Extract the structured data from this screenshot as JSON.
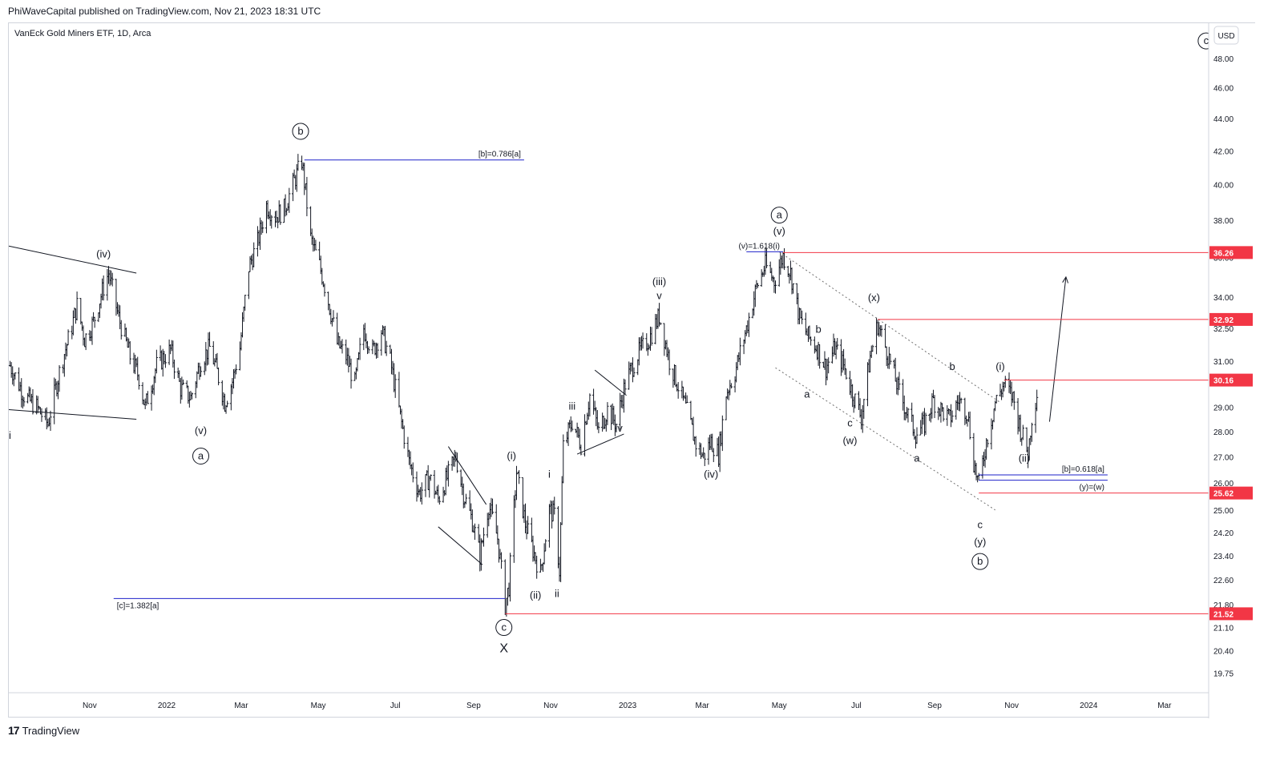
{
  "header": {
    "published": "PhiWaveCapital published on TradingView.com, Nov 21, 2023 18:31 UTC"
  },
  "footer": {
    "brand": "TradingView",
    "logo_icon": "tradingview-logo-icon"
  },
  "chart_data": {
    "type": "ohlc-bar",
    "title": "VanEck Gold Miners ETF, 1D, Arca",
    "currency": "USD",
    "log_scale": true,
    "ylim": [
      19.2,
      50.5
    ],
    "xlim": [
      "2021-08-29",
      "2024-04-05"
    ],
    "grid": false,
    "y_ticks": [
      "48.00",
      "46.00",
      "44.00",
      "42.00",
      "40.00",
      "38.00",
      "36.00",
      "34.00",
      "32.50",
      "31.00",
      "29.00",
      "28.00",
      "27.00",
      "26.00",
      "25.00",
      "24.20",
      "23.40",
      "22.60",
      "21.80",
      "21.10",
      "20.40",
      "19.75"
    ],
    "x_ticks": [
      {
        "label": "Nov",
        "date": "2021-11-01"
      },
      {
        "label": "2022",
        "date": "2022-01-01"
      },
      {
        "label": "Mar",
        "date": "2022-03-01"
      },
      {
        "label": "May",
        "date": "2022-05-01"
      },
      {
        "label": "Jul",
        "date": "2022-07-01"
      },
      {
        "label": "Sep",
        "date": "2022-09-01"
      },
      {
        "label": "Nov",
        "date": "2022-11-01"
      },
      {
        "label": "2023",
        "date": "2023-01-01"
      },
      {
        "label": "Mar",
        "date": "2023-03-01"
      },
      {
        "label": "May",
        "date": "2023-05-01"
      },
      {
        "label": "Jul",
        "date": "2023-07-01"
      },
      {
        "label": "Sep",
        "date": "2023-09-01"
      },
      {
        "label": "Nov",
        "date": "2023-11-01"
      },
      {
        "label": "2024",
        "date": "2024-01-01"
      },
      {
        "label": "Mar",
        "date": "2024-03-01"
      }
    ],
    "price_path": [
      [
        "2021-08-30",
        30.8
      ],
      [
        "2021-09-10",
        29.5
      ],
      [
        "2021-09-20",
        29.0
      ],
      [
        "2021-09-29",
        28.3
      ],
      [
        "2021-10-08",
        30.5
      ],
      [
        "2021-10-18",
        32.6
      ],
      [
        "2021-10-22",
        33.6
      ],
      [
        "2021-10-28",
        32.0
      ],
      [
        "2021-11-04",
        32.8
      ],
      [
        "2021-11-12",
        34.5
      ],
      [
        "2021-11-16",
        35.2
      ],
      [
        "2021-11-24",
        33.0
      ],
      [
        "2021-12-03",
        31.2
      ],
      [
        "2021-12-10",
        30.3
      ],
      [
        "2021-12-15",
        29.0
      ],
      [
        "2021-12-24",
        30.8
      ],
      [
        "2022-01-04",
        31.5
      ],
      [
        "2022-01-12",
        29.8
      ],
      [
        "2022-01-20",
        29.4
      ],
      [
        "2022-01-28",
        31.0
      ],
      [
        "2022-02-04",
        31.6
      ],
      [
        "2022-02-10",
        30.5
      ],
      [
        "2022-02-16",
        29.2
      ],
      [
        "2022-02-22",
        30.1
      ],
      [
        "2022-02-28",
        31.6
      ],
      [
        "2022-03-07",
        35.5
      ],
      [
        "2022-03-14",
        36.8
      ],
      [
        "2022-03-21",
        38.8
      ],
      [
        "2022-03-28",
        38.2
      ],
      [
        "2022-04-04",
        38.6
      ],
      [
        "2022-04-12",
        40.2
      ],
      [
        "2022-04-18",
        41.4
      ],
      [
        "2022-04-25",
        37.0
      ],
      [
        "2022-05-02",
        35.6
      ],
      [
        "2022-05-09",
        33.8
      ],
      [
        "2022-05-16",
        31.8
      ],
      [
        "2022-05-23",
        31.2
      ],
      [
        "2022-05-30",
        30.0
      ],
      [
        "2022-06-06",
        32.5
      ],
      [
        "2022-06-13",
        31.4
      ],
      [
        "2022-06-20",
        32.4
      ],
      [
        "2022-06-27",
        31.0
      ],
      [
        "2022-07-05",
        28.6
      ],
      [
        "2022-07-12",
        26.8
      ],
      [
        "2022-07-20",
        25.6
      ],
      [
        "2022-07-28",
        26.2
      ],
      [
        "2022-08-04",
        25.4
      ],
      [
        "2022-08-12",
        26.3
      ],
      [
        "2022-08-18",
        27.0
      ],
      [
        "2022-08-24",
        25.6
      ],
      [
        "2022-08-31",
        24.6
      ],
      [
        "2022-09-06",
        23.4
      ],
      [
        "2022-09-13",
        25.2
      ],
      [
        "2022-09-20",
        24.0
      ],
      [
        "2022-09-26",
        21.8
      ],
      [
        "2022-09-29",
        22.4
      ],
      [
        "2022-10-05",
        26.4
      ],
      [
        "2022-10-12",
        24.5
      ],
      [
        "2022-10-18",
        23.6
      ],
      [
        "2022-10-24",
        22.8
      ],
      [
        "2022-10-31",
        25.0
      ],
      [
        "2022-11-04",
        24.8
      ],
      [
        "2022-11-08",
        22.9
      ],
      [
        "2022-11-11",
        27.4
      ],
      [
        "2022-11-18",
        28.4
      ],
      [
        "2022-11-25",
        27.5
      ],
      [
        "2022-12-02",
        29.5
      ],
      [
        "2022-12-09",
        28.0
      ],
      [
        "2022-12-16",
        28.9
      ],
      [
        "2022-12-23",
        28.3
      ],
      [
        "2022-12-30",
        30.0
      ],
      [
        "2023-01-09",
        31.3
      ],
      [
        "2023-01-18",
        32.0
      ],
      [
        "2023-01-26",
        33.1
      ],
      [
        "2023-02-03",
        31.0
      ],
      [
        "2023-02-10",
        29.9
      ],
      [
        "2023-02-17",
        28.8
      ],
      [
        "2023-02-24",
        27.5
      ],
      [
        "2023-03-02",
        27.0
      ],
      [
        "2023-03-08",
        27.6
      ],
      [
        "2023-03-14",
        27.1
      ],
      [
        "2023-03-20",
        29.6
      ],
      [
        "2023-03-27",
        30.5
      ],
      [
        "2023-04-05",
        32.5
      ],
      [
        "2023-04-13",
        34.5
      ],
      [
        "2023-04-20",
        35.6
      ],
      [
        "2023-04-27",
        34.8
      ],
      [
        "2023-05-04",
        36.1
      ],
      [
        "2023-05-10",
        35.2
      ],
      [
        "2023-05-17",
        33.0
      ],
      [
        "2023-05-24",
        32.1
      ],
      [
        "2023-05-31",
        31.6
      ],
      [
        "2023-06-07",
        30.7
      ],
      [
        "2023-06-14",
        31.6
      ],
      [
        "2023-06-21",
        30.8
      ],
      [
        "2023-06-28",
        29.6
      ],
      [
        "2023-07-05",
        28.6
      ],
      [
        "2023-07-12",
        31.2
      ],
      [
        "2023-07-18",
        32.7
      ],
      [
        "2023-07-26",
        31.3
      ],
      [
        "2023-08-03",
        29.8
      ],
      [
        "2023-08-10",
        28.8
      ],
      [
        "2023-08-17",
        27.9
      ],
      [
        "2023-08-24",
        28.3
      ],
      [
        "2023-08-31",
        29.3
      ],
      [
        "2023-09-06",
        28.9
      ],
      [
        "2023-09-13",
        28.5
      ],
      [
        "2023-09-20",
        29.3
      ],
      [
        "2023-09-27",
        28.8
      ],
      [
        "2023-10-02",
        26.8
      ],
      [
        "2023-10-06",
        25.9
      ],
      [
        "2023-10-12",
        27.6
      ],
      [
        "2023-10-19",
        29.2
      ],
      [
        "2023-10-26",
        30.0
      ],
      [
        "2023-11-02",
        29.4
      ],
      [
        "2023-11-08",
        28.1
      ],
      [
        "2023-11-14",
        27.1
      ],
      [
        "2023-11-17",
        28.6
      ],
      [
        "2023-11-21",
        29.6
      ]
    ],
    "price_levels": [
      {
        "label": "36.26",
        "value": 36.26,
        "from": "2023-05-04",
        "color": "#f23645"
      },
      {
        "label": "32.92",
        "value": 32.92,
        "from": "2023-07-18",
        "color": "#f23645"
      },
      {
        "label": "30.16",
        "value": 30.16,
        "from": "2023-10-26",
        "color": "#f23645"
      },
      {
        "label": "25.62",
        "value": 25.62,
        "from": "2023-10-06",
        "color": "#f23645"
      },
      {
        "label": "21.52",
        "value": 21.52,
        "from": "2022-09-26",
        "color": "#f23645"
      }
    ],
    "fib_lines": [
      {
        "label": "[b]=0.786[a]",
        "value": 41.45,
        "from": "2022-04-20",
        "to": "2022-10-11",
        "color": "#1e22c9"
      },
      {
        "label": "(v)=1.618(i)",
        "value": 36.3,
        "from": "2023-04-05",
        "to": "2023-05-04",
        "color": "#1e22c9"
      },
      {
        "label": "[b]=0.618[a]",
        "value": 26.3,
        "from": "2023-10-06",
        "to": "2024-01-16",
        "color": "#1e22c9"
      },
      {
        "label": "(y)=(w)",
        "value": 26.1,
        "from": "2023-10-06",
        "to": "2024-01-16",
        "color": "#1e22c9"
      },
      {
        "label": "[c]=1.382[a]",
        "value": 22.0,
        "from": "2021-11-20",
        "to": "2022-09-26",
        "color": "#1e22c9"
      }
    ],
    "wave_labels": [
      {
        "text": "ii",
        "date": "2021-08-29",
        "value": 27.7,
        "circled": false
      },
      {
        "text": "(iv)",
        "date": "2021-11-12",
        "value": 36.0,
        "circled": false
      },
      {
        "text": "(v)",
        "date": "2022-01-28",
        "value": 27.9,
        "circled": false
      },
      {
        "text": "a",
        "date": "2022-01-28",
        "value": 26.9,
        "circled": true
      },
      {
        "text": "b",
        "date": "2022-04-17",
        "value": 43.0,
        "circled": true
      },
      {
        "text": "(i)",
        "date": "2022-10-01",
        "value": 26.9,
        "circled": false
      },
      {
        "text": "(ii)",
        "date": "2022-10-20",
        "value": 22.0,
        "circled": false
      },
      {
        "text": "i",
        "date": "2022-10-31",
        "value": 26.2,
        "circled": false
      },
      {
        "text": "ii",
        "date": "2022-11-06",
        "value": 22.05,
        "circled": false
      },
      {
        "text": "iii",
        "date": "2022-11-18",
        "value": 28.9,
        "circled": false
      },
      {
        "text": "iv",
        "date": "2022-12-25",
        "value": 28.0,
        "circled": false
      },
      {
        "text": "(iii)",
        "date": "2023-01-26",
        "value": 34.6,
        "circled": false
      },
      {
        "text": "v",
        "date": "2023-01-26",
        "value": 33.9,
        "circled": false
      },
      {
        "text": "(iv)",
        "date": "2023-03-08",
        "value": 26.2,
        "circled": false
      },
      {
        "text": "(v)",
        "date": "2023-05-01",
        "value": 37.2,
        "circled": false
      },
      {
        "text": "a",
        "date": "2023-05-01",
        "value": 38.1,
        "circled": true
      },
      {
        "text": "b",
        "date": "2023-06-01",
        "value": 32.3,
        "circled": false
      },
      {
        "text": "a",
        "date": "2023-05-23",
        "value": 29.4,
        "circled": false
      },
      {
        "text": "c",
        "date": "2023-06-26",
        "value": 28.2,
        "circled": false
      },
      {
        "text": "(w)",
        "date": "2023-06-26",
        "value": 27.5,
        "circled": false
      },
      {
        "text": "(x)",
        "date": "2023-07-15",
        "value": 33.8,
        "circled": false
      },
      {
        "text": "a",
        "date": "2023-08-18",
        "value": 26.8,
        "circled": false
      },
      {
        "text": "b",
        "date": "2023-09-15",
        "value": 30.6,
        "circled": false
      },
      {
        "text": "(i)",
        "date": "2023-10-23",
        "value": 30.6,
        "circled": false
      },
      {
        "text": "(ii)",
        "date": "2023-11-11",
        "value": 26.8,
        "circled": false
      },
      {
        "text": "c",
        "date": "2023-10-07",
        "value": 24.35,
        "circled": false
      },
      {
        "text": "(y)",
        "date": "2023-10-07",
        "value": 23.75,
        "circled": false
      },
      {
        "text": "b",
        "date": "2023-10-07",
        "value": 23.1,
        "circled": true
      },
      {
        "text": "c",
        "date": "2022-09-25",
        "value": 21.0,
        "circled": true
      },
      {
        "text": "X",
        "date": "2022-09-25",
        "value": 20.35,
        "circled": false
      },
      {
        "text": "c",
        "date": "2024-04-03",
        "value": 49.0,
        "circled": true
      }
    ],
    "trend_lines": [
      {
        "name": "wedge-upper-2021",
        "from": [
          "2021-08-29",
          36.6
        ],
        "to": [
          "2021-12-08",
          35.2
        ],
        "style": "solid"
      },
      {
        "name": "wedge-lower-2021",
        "from": [
          "2021-08-29",
          28.9
        ],
        "to": [
          "2021-12-08",
          28.5
        ],
        "style": "solid"
      },
      {
        "name": "triangle-upper-2022",
        "from": [
          "2022-08-12",
          27.4
        ],
        "to": [
          "2022-09-11",
          25.2
        ],
        "style": "solid"
      },
      {
        "name": "triangle-lower-2022",
        "from": [
          "2022-08-04",
          24.4
        ],
        "to": [
          "2022-09-08",
          23.1
        ],
        "style": "solid"
      },
      {
        "name": "triangle-upper-2022-12",
        "from": [
          "2022-12-06",
          30.6
        ],
        "to": [
          "2022-12-31",
          29.5
        ],
        "style": "solid"
      },
      {
        "name": "triangle-lower-2022-12",
        "from": [
          "2022-11-22",
          27.1
        ],
        "to": [
          "2022-12-29",
          27.9
        ],
        "style": "solid"
      },
      {
        "name": "channel-upper-2023",
        "from": [
          "2023-05-01",
          36.3
        ],
        "to": [
          "2023-10-23",
          29.2
        ],
        "style": "dotted"
      },
      {
        "name": "channel-lower-2023",
        "from": [
          "2023-04-28",
          30.7
        ],
        "to": [
          "2023-10-19",
          25.0
        ],
        "style": "dotted"
      },
      {
        "name": "projection-arrow",
        "from": [
          "2023-12-01",
          28.4
        ],
        "to": [
          "2023-12-14",
          35.0
        ],
        "style": "arrow"
      }
    ]
  }
}
